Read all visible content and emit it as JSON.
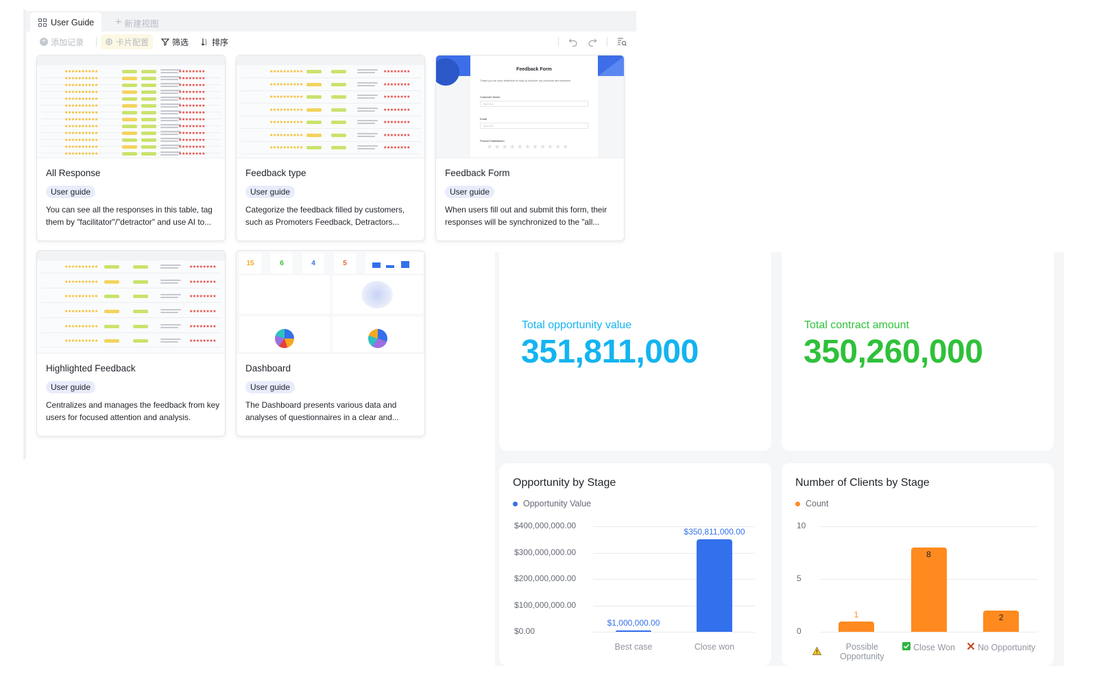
{
  "tabs": {
    "active": "User Guide",
    "new": "新建视图"
  },
  "toolbar": {
    "add_record": "添加记录",
    "card_config": "卡片配置",
    "filter": "筛选",
    "sort": "排序"
  },
  "cards": [
    {
      "title": "All Response",
      "tag": "User guide",
      "desc": "You can see all the responses in this table,  tag them by \"facilitator\"/\"detractor\" and use AI to..."
    },
    {
      "title": "Feedback type",
      "tag": "User guide",
      "desc": "Categorize the feedback filled by customers, such as Promoters Feedback, Detractors..."
    },
    {
      "title": "Feedback Form",
      "tag": "User guide",
      "desc": "When users fill out and submit this form, their responses will be synchronized to the \"all..."
    },
    {
      "title": "Highlighted Feedback",
      "tag": "User guide",
      "desc": "Centralizes and manages the feedback from key users for focused attention and analysis."
    },
    {
      "title": "Dashboard",
      "tag": "User guide",
      "desc": "The Dashboard presents various data and analyses of questionnaires in a clear and..."
    }
  ],
  "form_thumb": {
    "title": "Feedback Form",
    "intro": "Thank you for your feedback to help us improve our products and services!",
    "f1": "Customer Name",
    "f2": "Email",
    "f3": "Product Satisfaction",
    "placeholder": "Type here"
  },
  "dash_thumb": {
    "k1": "15",
    "k2": "6",
    "k3": "4",
    "k4": "5"
  },
  "kpis": {
    "opportunity_label": "Total opportunity value",
    "opportunity_value": "351,811,000",
    "contract_label": "Total contract amount",
    "contract_value": "350,260,000",
    "opportunity_color": "#14b4f0",
    "contract_color": "#2fc13a"
  },
  "chart_data": [
    {
      "type": "bar",
      "title": "Opportunity by Stage",
      "categories": [
        "Best case",
        "Close won"
      ],
      "series": [
        {
          "name": "Opportunity Value",
          "values": [
            1000000,
            350811000
          ],
          "color": "#3370eb"
        }
      ],
      "value_labels": [
        "$1,000,000.00",
        "$350,811,000.00"
      ],
      "ylim": [
        0,
        400000000
      ],
      "yticks": [
        "$0.00",
        "$100,000,000.00",
        "$200,000,000.00",
        "$300,000,000.00",
        "$400,000,000.00"
      ],
      "grid": true,
      "legend": "top-left"
    },
    {
      "type": "bar",
      "title": "Number of Clients by Stage",
      "categories": [
        "Possible Opportunity",
        "Close Won",
        "No Opportunity"
      ],
      "category_icons": [
        "warning-icon",
        "check-icon",
        "cross-icon"
      ],
      "series": [
        {
          "name": "Count",
          "values": [
            1,
            8,
            2
          ],
          "color": "#ff8a1f"
        }
      ],
      "ylim": [
        0,
        10
      ],
      "yticks": [
        "0",
        "5",
        "10"
      ],
      "grid": true,
      "legend": "top-left"
    }
  ]
}
